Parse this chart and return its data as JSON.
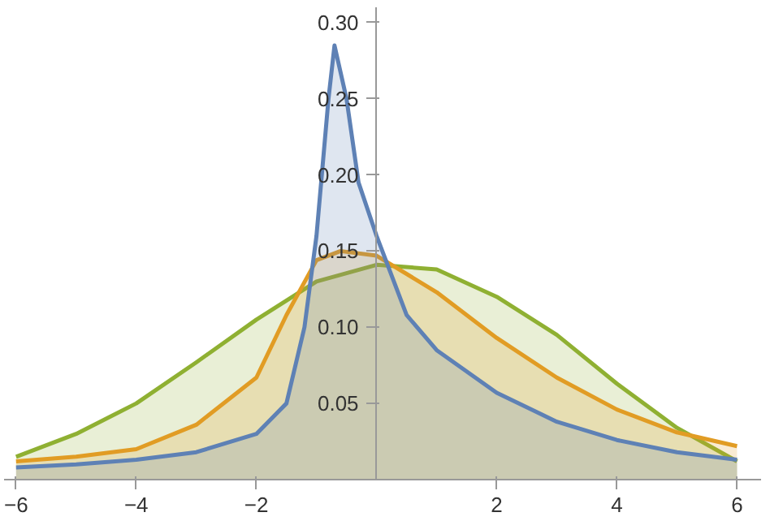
{
  "chart_data": {
    "type": "area",
    "xlim": [
      -6.2,
      6.4
    ],
    "ylim": [
      0,
      0.31
    ],
    "xticks": [
      {
        "value": -6,
        "label": "−6"
      },
      {
        "value": -4,
        "label": "−4"
      },
      {
        "value": -2,
        "label": "−2"
      },
      2,
      4,
      6
    ],
    "yticks": [
      {
        "value": 0.05,
        "label": "0.05"
      },
      {
        "value": 0.1,
        "label": "0.10"
      },
      {
        "value": 0.15,
        "label": "0.15"
      },
      {
        "value": 0.2,
        "label": "0.20"
      },
      {
        "value": 0.25,
        "label": "0.25"
      },
      {
        "value": 0.3,
        "label": "0.30"
      }
    ],
    "series": [
      {
        "color": "#8fb032",
        "x": [
          -6,
          -5,
          -4,
          -3,
          -2,
          -1,
          0,
          1,
          2,
          3,
          4,
          5,
          6
        ],
        "values": [
          0.015,
          0.03,
          0.05,
          0.077,
          0.105,
          0.13,
          0.141,
          0.138,
          0.12,
          0.095,
          0.063,
          0.034,
          0.012
        ]
      },
      {
        "color": "#e19c24",
        "x": [
          -6,
          -5,
          -4,
          -3,
          -2,
          -1.5,
          -1,
          -0.6,
          0,
          1,
          2,
          3,
          4,
          5,
          6
        ],
        "values": [
          0.012,
          0.015,
          0.02,
          0.036,
          0.067,
          0.108,
          0.144,
          0.15,
          0.147,
          0.123,
          0.093,
          0.067,
          0.046,
          0.031,
          0.022
        ]
      },
      {
        "color": "#5e81b5",
        "x": [
          -6,
          -5,
          -4,
          -3,
          -2,
          -1.5,
          -1.2,
          -1,
          -0.8,
          -0.7,
          -0.5,
          -0.3,
          0,
          0.5,
          1,
          2,
          3,
          4,
          5,
          6
        ],
        "values": [
          0.008,
          0.01,
          0.013,
          0.018,
          0.03,
          0.05,
          0.1,
          0.16,
          0.25,
          0.285,
          0.25,
          0.195,
          0.16,
          0.108,
          0.085,
          0.057,
          0.038,
          0.026,
          0.018,
          0.013
        ]
      }
    ]
  }
}
